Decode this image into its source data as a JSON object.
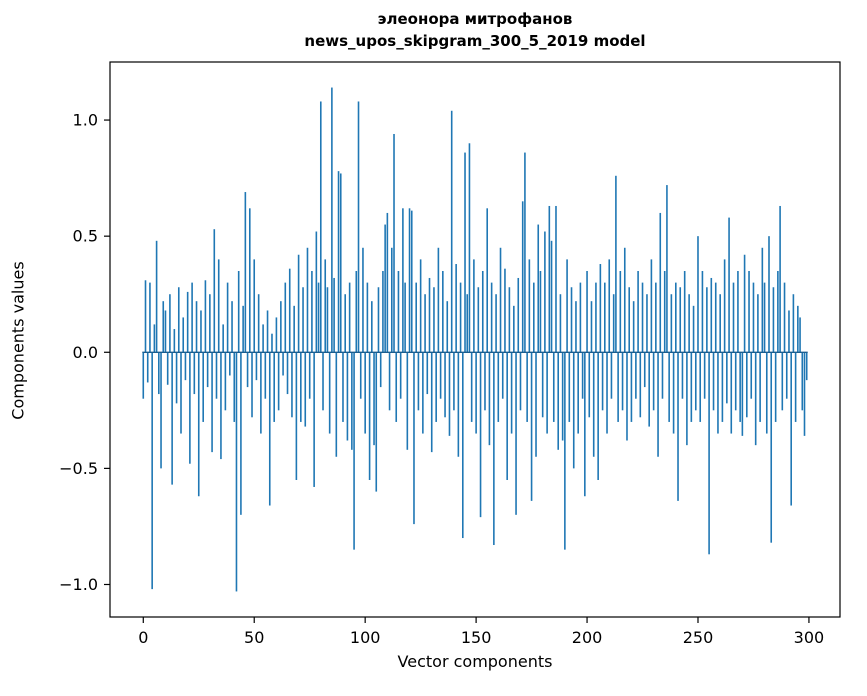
{
  "chart_data": {
    "type": "bar",
    "title": "элеонора митрофанов",
    "subtitle": "news_upos_skipgram_300_5_2019 model",
    "xlabel": "Vector components",
    "ylabel": "Components values",
    "bar_color": "#1f77b4",
    "xlim": [
      -15,
      314
    ],
    "ylim": [
      -1.14,
      1.25
    ],
    "x_ticks": [
      0,
      50,
      100,
      150,
      200,
      250,
      300
    ],
    "y_ticks": [
      -1.0,
      -0.5,
      0.0,
      0.5,
      1.0
    ],
    "y_tick_labels": [
      "−1.0",
      "−0.5",
      "0.0",
      "0.5",
      "1.0"
    ],
    "grid": false,
    "legend": null,
    "values": [
      -0.2,
      0.31,
      -0.13,
      0.3,
      -1.02,
      0.12,
      0.48,
      -0.18,
      -0.5,
      0.22,
      0.18,
      -0.14,
      0.25,
      -0.57,
      0.1,
      -0.22,
      0.28,
      -0.35,
      0.15,
      -0.12,
      0.26,
      -0.48,
      0.3,
      -0.18,
      0.22,
      -0.62,
      0.18,
      -0.3,
      0.31,
      -0.15,
      0.25,
      -0.43,
      0.53,
      -0.2,
      0.4,
      -0.46,
      0.12,
      -0.25,
      0.3,
      -0.1,
      0.22,
      -0.3,
      -1.03,
      0.35,
      -0.7,
      0.2,
      0.69,
      -0.15,
      0.62,
      -0.28,
      0.4,
      -0.12,
      0.25,
      -0.35,
      0.12,
      -0.2,
      0.18,
      -0.66,
      0.08,
      -0.3,
      0.15,
      -0.25,
      0.22,
      -0.1,
      0.3,
      -0.18,
      0.36,
      -0.28,
      0.2,
      -0.55,
      0.42,
      -0.3,
      0.28,
      -0.32,
      0.45,
      -0.2,
      0.35,
      -0.58,
      0.52,
      0.3,
      1.08,
      -0.25,
      0.4,
      0.28,
      -0.35,
      1.14,
      0.32,
      -0.45,
      0.78,
      0.77,
      -0.3,
      0.25,
      -0.38,
      0.3,
      -0.42,
      -0.85,
      0.35,
      1.08,
      -0.2,
      0.45,
      -0.35,
      0.3,
      -0.55,
      0.22,
      -0.4,
      -0.6,
      0.28,
      -0.15,
      0.35,
      0.55,
      0.6,
      -0.25,
      0.45,
      0.94,
      -0.3,
      0.35,
      -0.2,
      0.62,
      0.3,
      -0.42,
      0.62,
      0.61,
      -0.74,
      0.3,
      -0.25,
      0.4,
      -0.35,
      0.25,
      -0.18,
      0.32,
      -0.43,
      0.28,
      -0.3,
      0.45,
      -0.2,
      0.35,
      -0.28,
      0.22,
      -0.36,
      1.04,
      -0.25,
      0.38,
      -0.45,
      0.3,
      -0.8,
      0.86,
      0.25,
      0.9,
      -0.3,
      0.4,
      -0.35,
      0.28,
      -0.71,
      0.35,
      -0.25,
      0.62,
      -0.4,
      0.3,
      -0.83,
      0.25,
      -0.3,
      0.45,
      -0.2,
      0.36,
      -0.55,
      0.28,
      -0.35,
      0.2,
      -0.7,
      0.32,
      -0.25,
      0.65,
      0.86,
      -0.3,
      0.4,
      -0.64,
      0.3,
      -0.45,
      0.55,
      0.35,
      -0.28,
      0.52,
      -0.35,
      0.63,
      0.48,
      -0.3,
      0.63,
      -0.42,
      0.25,
      -0.38,
      -0.85,
      0.4,
      -0.3,
      0.28,
      -0.5,
      0.22,
      -0.35,
      0.3,
      -0.2,
      -0.62,
      0.35,
      -0.28,
      0.22,
      -0.45,
      0.3,
      -0.55,
      0.38,
      -0.25,
      0.3,
      -0.35,
      0.4,
      -0.2,
      0.25,
      0.76,
      -0.3,
      0.35,
      -0.25,
      0.45,
      -0.38,
      0.28,
      -0.3,
      0.22,
      -0.2,
      0.35,
      -0.28,
      0.3,
      -0.15,
      0.25,
      -0.32,
      0.4,
      -0.25,
      0.3,
      -0.45,
      0.6,
      -0.2,
      0.35,
      0.72,
      -0.3,
      0.25,
      -0.35,
      0.3,
      -0.64,
      0.28,
      -0.2,
      0.35,
      -0.4,
      0.25,
      -0.3,
      0.2,
      -0.25,
      0.5,
      -0.3,
      0.35,
      -0.2,
      0.28,
      -0.87,
      0.32,
      -0.25,
      0.3,
      -0.35,
      0.25,
      -0.3,
      0.4,
      -0.22,
      0.58,
      -0.35,
      0.3,
      -0.25,
      0.35,
      -0.3,
      -0.36,
      0.42,
      -0.28,
      0.35,
      -0.2,
      0.3,
      -0.4,
      0.25,
      -0.3,
      0.45,
      0.3,
      -0.35,
      0.5,
      -0.82,
      0.28,
      -0.3,
      0.35,
      0.63,
      -0.25,
      0.3,
      -0.2,
      0.18,
      -0.66,
      0.25,
      -0.3,
      0.2,
      0.15,
      -0.25,
      -0.36,
      -0.12
    ]
  }
}
